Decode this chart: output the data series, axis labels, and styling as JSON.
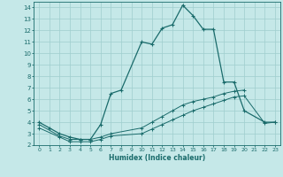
{
  "xlabel": "Humidex (Indice chaleur)",
  "bg_color": "#c5e8e8",
  "line_color": "#1a6b6b",
  "grid_color": "#9fcece",
  "xlim": [
    -0.5,
    23.5
  ],
  "ylim": [
    2,
    14.5
  ],
  "xticks": [
    0,
    1,
    2,
    3,
    4,
    5,
    6,
    7,
    8,
    9,
    10,
    11,
    12,
    13,
    14,
    15,
    16,
    17,
    18,
    19,
    20,
    21,
    22,
    23
  ],
  "yticks": [
    2,
    3,
    4,
    5,
    6,
    7,
    8,
    9,
    10,
    11,
    12,
    13,
    14
  ],
  "line1_x": [
    0,
    1,
    2,
    3,
    4,
    5,
    6,
    7,
    8,
    10,
    11,
    12,
    13,
    14,
    15,
    16,
    17,
    18,
    19,
    20,
    22,
    23
  ],
  "line1_y": [
    4.0,
    3.5,
    3.0,
    2.7,
    2.5,
    2.5,
    3.8,
    6.5,
    6.8,
    11.0,
    10.8,
    12.2,
    12.5,
    14.2,
    13.3,
    12.1,
    12.1,
    7.5,
    7.5,
    5.0,
    4.0,
    4.0
  ],
  "line2_x": [
    0,
    2,
    3,
    4,
    5,
    6,
    7,
    10,
    11,
    12,
    13,
    14,
    15,
    16,
    17,
    18,
    19,
    20
  ],
  "line2_y": [
    3.8,
    2.8,
    2.5,
    2.5,
    2.5,
    2.7,
    3.0,
    3.5,
    4.0,
    4.5,
    5.0,
    5.5,
    5.8,
    6.0,
    6.2,
    6.5,
    6.7,
    6.8
  ],
  "line3_x": [
    0,
    2,
    3,
    4,
    5,
    6,
    7,
    10,
    11,
    12,
    13,
    14,
    15,
    16,
    17,
    18,
    19,
    20,
    22,
    23
  ],
  "line3_y": [
    3.5,
    2.7,
    2.3,
    2.3,
    2.3,
    2.5,
    2.8,
    3.0,
    3.4,
    3.8,
    4.2,
    4.6,
    5.0,
    5.3,
    5.6,
    5.9,
    6.2,
    6.3,
    3.9,
    4.0
  ]
}
